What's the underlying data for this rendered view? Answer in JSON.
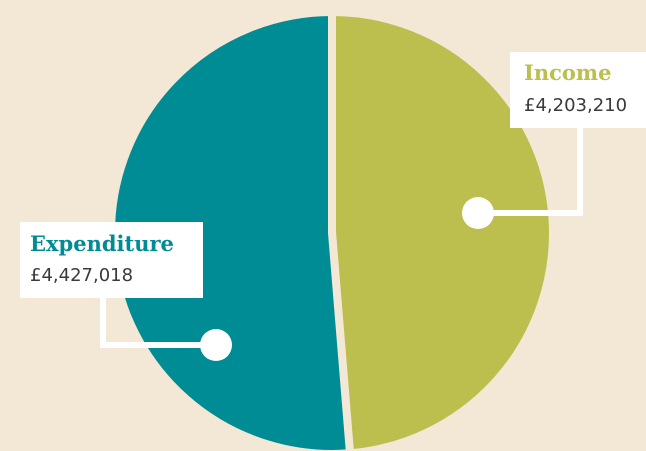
{
  "chart_data": {
    "type": "pie",
    "categories": [
      "Income",
      "Expenditure"
    ],
    "values": [
      4203210,
      4427018
    ],
    "value_labels": [
      "£4,203,210",
      "£4,427,018"
    ],
    "colors": [
      "#bcbf4e",
      "#008c94"
    ]
  }
}
